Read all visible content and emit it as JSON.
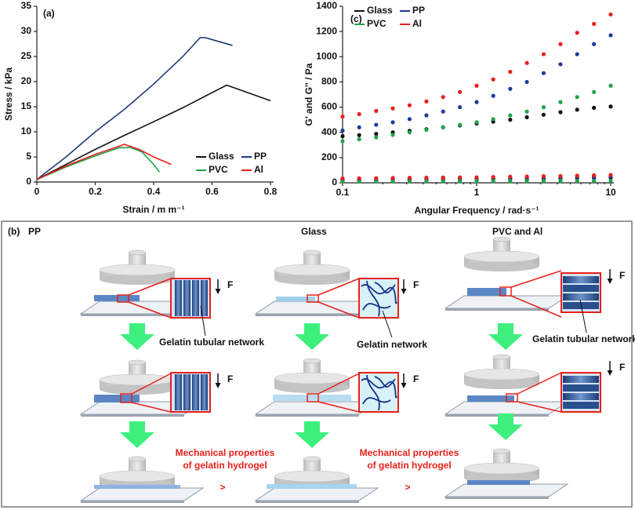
{
  "chart_data": [
    {
      "type": "line",
      "title": "(a)",
      "xlabel": "Strain / m m⁻¹",
      "ylabel": "Stress / kPa",
      "xlim": [
        0,
        0.8
      ],
      "xticks": [
        0,
        0.2,
        0.4,
        0.6,
        0.8
      ],
      "ylim": [
        0,
        35
      ],
      "yticks": [
        0,
        5,
        10,
        15,
        20,
        25,
        30,
        35
      ],
      "legend": "lower right",
      "series": [
        {
          "name": "Glass",
          "color": "#111111",
          "x": [
            0,
            0.1,
            0.2,
            0.3,
            0.4,
            0.5,
            0.6,
            0.65,
            0.8
          ],
          "values": [
            0.5,
            3.5,
            6.5,
            9.3,
            12,
            14.8,
            17.8,
            19.3,
            16.2
          ]
        },
        {
          "name": "PP",
          "color": "#1f3a7a",
          "x": [
            0,
            0.1,
            0.2,
            0.3,
            0.4,
            0.5,
            0.56,
            0.58,
            0.67
          ],
          "values": [
            0.5,
            5,
            10,
            14.5,
            19.5,
            25,
            28.8,
            28.7,
            27.2
          ]
        },
        {
          "name": "PVC",
          "color": "#1fa34a",
          "x": [
            0,
            0.1,
            0.2,
            0.28,
            0.32,
            0.36,
            0.4,
            0.42
          ],
          "values": [
            0.5,
            3,
            5.2,
            6.8,
            6.9,
            6,
            3.5,
            2
          ]
        },
        {
          "name": "Al",
          "color": "#e8201a",
          "x": [
            0,
            0.1,
            0.2,
            0.3,
            0.35,
            0.4,
            0.46
          ],
          "values": [
            0.5,
            3.2,
            5.5,
            7.5,
            6.5,
            5,
            3.5
          ]
        }
      ]
    },
    {
      "type": "scatter",
      "title": "(c)",
      "xlabel": "Angular Frequency / rad·s⁻¹",
      "ylabel": "G' and G'' / Pa",
      "xscale": "log",
      "xlim": [
        0.1,
        10
      ],
      "xticks": [
        0.1,
        1,
        10
      ],
      "ylim": [
        0,
        1400
      ],
      "yticks": [
        0,
        200,
        400,
        600,
        800,
        1000,
        1200,
        1400
      ],
      "legend": "upper left",
      "x": [
        0.1,
        0.133,
        0.178,
        0.237,
        0.316,
        0.422,
        0.562,
        0.75,
        1,
        1.33,
        1.78,
        2.37,
        3.16,
        4.22,
        5.62,
        7.5,
        10
      ],
      "series": [
        {
          "name": "Glass",
          "color": "#111111",
          "values": [
            370,
            378,
            388,
            400,
            412,
            425,
            440,
            455,
            470,
            485,
            500,
            520,
            540,
            560,
            580,
            595,
            605
          ]
        },
        {
          "name": "PP",
          "color": "#1f3a9a",
          "values": [
            415,
            440,
            460,
            480,
            505,
            535,
            565,
            600,
            640,
            690,
            745,
            800,
            870,
            940,
            1020,
            1100,
            1170
          ]
        },
        {
          "name": "PVC",
          "color": "#1fa34a",
          "values": [
            330,
            345,
            360,
            380,
            400,
            420,
            440,
            460,
            480,
            505,
            535,
            565,
            600,
            640,
            680,
            720,
            770
          ]
        },
        {
          "name": "Al",
          "color": "#e8201a",
          "values": [
            525,
            545,
            570,
            590,
            615,
            645,
            680,
            720,
            770,
            820,
            880,
            950,
            1020,
            1100,
            1190,
            1260,
            1335
          ]
        },
        {
          "color": "#111111",
          "values": [
            20,
            21,
            22,
            23,
            24,
            25,
            26,
            27,
            28,
            29,
            30,
            31,
            32,
            34,
            36,
            38,
            40
          ]
        },
        {
          "color": "#1f3a9a",
          "values": [
            25,
            26,
            27,
            28,
            29,
            30,
            31,
            32,
            33,
            34,
            36,
            38,
            40,
            42,
            45,
            48,
            50
          ]
        },
        {
          "color": "#1fa34a",
          "values": [
            10,
            10,
            11,
            11,
            11,
            12,
            12,
            12,
            13,
            13,
            13,
            14,
            14,
            14,
            15,
            15,
            15
          ]
        },
        {
          "color": "#e8201a",
          "values": [
            35,
            36,
            37,
            38,
            40,
            41,
            42,
            43,
            44,
            46,
            48,
            50,
            52,
            54,
            57,
            60,
            62
          ]
        }
      ]
    }
  ],
  "diagram": {
    "label": "(b)",
    "force_label": "F",
    "columns": [
      {
        "title": "PP",
        "annotation": "Gelatin tubular network"
      },
      {
        "title": "Glass",
        "annotation": "Gelatin network"
      },
      {
        "title": "PVC and Al",
        "annotation": "Gelatin tubular network"
      }
    ],
    "comparisons": [
      {
        "line1": "Mechanical properties",
        "line2": "of gelatin hydrogel",
        "symbol": ">"
      },
      {
        "line1": "Mechanical properties",
        "line2": "of gelatin hydrogel",
        "symbol": ">"
      }
    ]
  }
}
